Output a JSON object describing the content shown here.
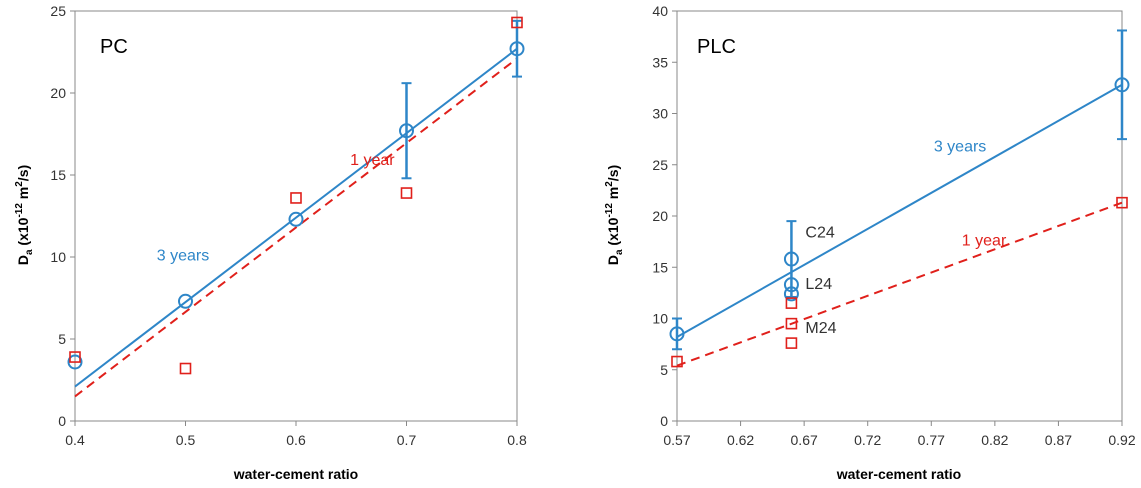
{
  "chart_data": [
    {
      "type": "scatter",
      "title": "PC",
      "xlabel": "water-cement ratio",
      "ylabel": {
        "main": "D",
        "sub": "a",
        "rest_pre": " (x10",
        "exp": "-12",
        "unit": " m",
        "unit_exp": "2",
        "tail": "/s)"
      },
      "xlim": [
        0.4,
        0.8
      ],
      "ylim": [
        0,
        25
      ],
      "xticks": [
        0.4,
        0.5,
        0.6,
        0.7,
        0.8
      ],
      "xtick_labels": [
        "0.4",
        "0.5",
        "0.6",
        "0.7",
        "0.8"
      ],
      "yticks": [
        0,
        5,
        10,
        15,
        20,
        25
      ],
      "ytick_labels": [
        "0",
        "5",
        "10",
        "15",
        "20",
        "25"
      ],
      "grid": false,
      "series": [
        {
          "name": "3 years",
          "marker": "circle",
          "color": "#2e86c8",
          "x": [
            0.4,
            0.5,
            0.6,
            0.7,
            0.8
          ],
          "y": [
            3.6,
            7.3,
            12.3,
            17.7,
            22.7
          ],
          "error": [
            null,
            null,
            null,
            2.9,
            1.7
          ],
          "fit": {
            "x": [
              0.4,
              0.8
            ],
            "y": [
              2.1,
              22.7
            ],
            "style": "solid"
          }
        },
        {
          "name": "1 year",
          "marker": "square",
          "color": "#e0201b",
          "x": [
            0.4,
            0.5,
            0.6,
            0.7,
            0.8
          ],
          "y": [
            3.9,
            3.2,
            13.6,
            13.9,
            24.3
          ],
          "fit": {
            "x": [
              0.4,
              0.8
            ],
            "y": [
              1.5,
              22.1
            ],
            "style": "dashed"
          }
        }
      ],
      "annotations": [
        {
          "text": "3 years",
          "x": 0.474,
          "y": 9.8,
          "color": "#2e86c8"
        },
        {
          "text": "1 year",
          "x": 0.649,
          "y": 15.6,
          "color": "#e0201b"
        }
      ]
    },
    {
      "type": "scatter",
      "title": "PLC",
      "xlabel": "water-cement ratio",
      "ylabel": {
        "main": "D",
        "sub": "a",
        "rest_pre": " (x10",
        "exp": "-12",
        "unit": " m",
        "unit_exp": "2",
        "tail": "/s)"
      },
      "xlim": [
        0.57,
        0.92
      ],
      "ylim": [
        0,
        40
      ],
      "xticks": [
        0.57,
        0.62,
        0.67,
        0.72,
        0.77,
        0.82,
        0.87,
        0.92
      ],
      "xtick_labels": [
        "0.57",
        "0.62",
        "0.67",
        "0.72",
        "0.77",
        "0.82",
        "0.87",
        "0.92"
      ],
      "yticks": [
        0,
        5,
        10,
        15,
        20,
        25,
        30,
        35,
        40
      ],
      "ytick_labels": [
        "0",
        "5",
        "10",
        "15",
        "20",
        "25",
        "30",
        "35",
        "40"
      ],
      "grid": false,
      "series": [
        {
          "name": "3 years",
          "marker": "circle",
          "color": "#2e86c8",
          "x": [
            0.57,
            0.66,
            0.66,
            0.66,
            0.92
          ],
          "y": [
            8.5,
            15.8,
            13.3,
            12.4,
            32.8
          ],
          "error": [
            1.5,
            3.7,
            null,
            null,
            5.3
          ],
          "fit": {
            "x": [
              0.57,
              0.92
            ],
            "y": [
              8.2,
              32.8
            ],
            "style": "solid"
          }
        },
        {
          "name": "1 year",
          "marker": "square",
          "color": "#e0201b",
          "x": [
            0.57,
            0.66,
            0.66,
            0.66,
            0.92
          ],
          "y": [
            5.8,
            11.5,
            9.5,
            7.6,
            21.3
          ],
          "fit": {
            "x": [
              0.57,
              0.92
            ],
            "y": [
              5.4,
              21.3
            ],
            "style": "dashed"
          }
        }
      ],
      "annotations": [
        {
          "text": "3 years",
          "x": 0.772,
          "y": 26.3,
          "color": "#2e86c8"
        },
        {
          "text": "1 year",
          "x": 0.794,
          "y": 17.1,
          "color": "#e0201b"
        },
        {
          "text": "C24",
          "x": 0.671,
          "y": 17.9,
          "color": "#333333"
        },
        {
          "text": "L24",
          "x": 0.671,
          "y": 12.9,
          "color": "#333333"
        },
        {
          "text": "M24",
          "x": 0.671,
          "y": 8.6,
          "color": "#333333"
        }
      ]
    }
  ]
}
